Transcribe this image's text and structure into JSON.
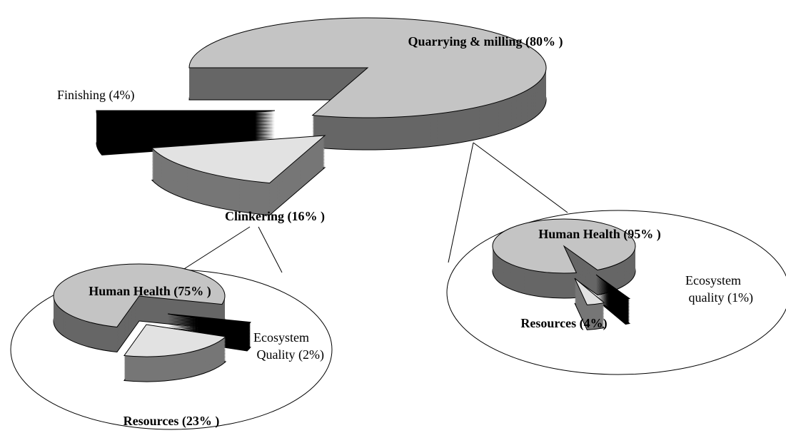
{
  "chart_data": [
    {
      "type": "pie",
      "categories": [
        "Quarrying & milling (80% )",
        "Clinkering (16% )",
        "Finishing (4%)"
      ],
      "values": [
        80,
        16,
        4
      ],
      "colors": [
        "#c4c4c4",
        "#e2e2e2",
        "#000000"
      ]
    },
    {
      "type": "pie",
      "categories": [
        "Human Health (75% )",
        "Ecosystem Quality (2%)",
        "Resources (23% )"
      ],
      "values": [
        75,
        2,
        23
      ],
      "colors": [
        "#c4c4c4",
        "#000000",
        "#e2e2e2"
      ]
    },
    {
      "type": "pie",
      "categories": [
        "Human Health (95% )",
        "Ecosystem quality (1%)",
        "Resources (4%)"
      ],
      "values": [
        95,
        1,
        4
      ],
      "colors": [
        "#c4c4c4",
        "#000000",
        "#e2e2e2"
      ]
    }
  ]
}
